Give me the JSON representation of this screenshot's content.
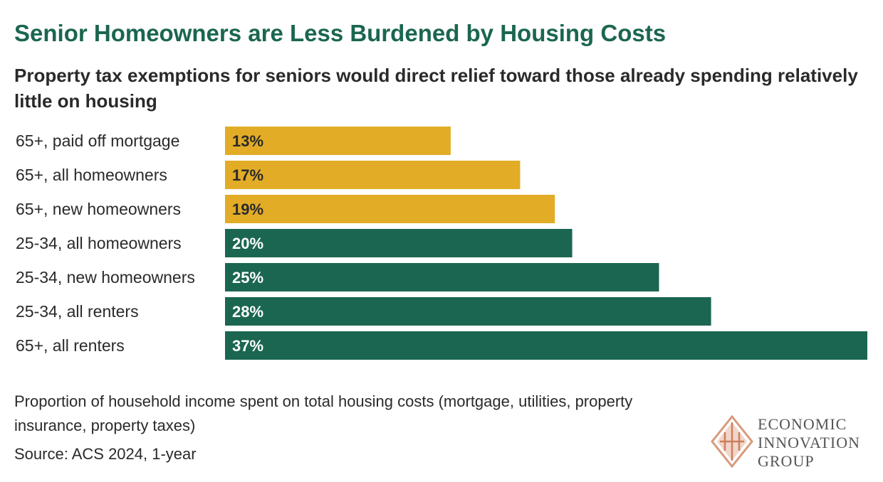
{
  "title": "Senior Homeowners are Less Burdened by Housing Costs",
  "subtitle": "Property tax exemptions for seniors would direct relief toward those already spending relatively little on housing",
  "note": "Proportion of household income spent on total housing costs (mortgage, utilities, property insurance, property taxes)",
  "source": "Source: ACS 2024, 1-year",
  "logo": {
    "line1": "ECONOMIC",
    "line2": "INNOVATION",
    "line3": "GROUP"
  },
  "colors": {
    "senior": "#e2ac27",
    "young": "#1b6650",
    "title": "#1b6650"
  },
  "chart_data": {
    "type": "bar",
    "orientation": "horizontal",
    "title": "Senior Homeowners are Less Burdened by Housing Costs",
    "xlabel": "",
    "ylabel": "",
    "xlim": [
      0,
      37
    ],
    "value_suffix": "%",
    "categories": [
      "65+, paid off mortgage",
      "65+, all homeowners",
      "65+, new homeowners",
      "25-34, all homeowners",
      "25-34, new homeowners",
      "25-34, all renters",
      "65+, all renters"
    ],
    "values": [
      13,
      17,
      19,
      20,
      25,
      28,
      37
    ],
    "bar_colors": [
      "#e2ac27",
      "#e2ac27",
      "#e2ac27",
      "#1b6650",
      "#1b6650",
      "#1b6650",
      "#1b6650"
    ],
    "label_colors": [
      "#2a2a2a",
      "#2a2a2a",
      "#2a2a2a",
      "#ffffff",
      "#ffffff",
      "#ffffff",
      "#ffffff"
    ],
    "grid": false
  }
}
